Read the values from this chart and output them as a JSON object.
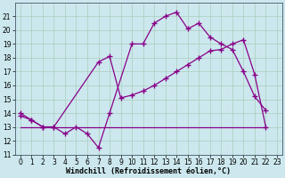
{
  "xlabel": "Windchill (Refroidissement éolien,°C)",
  "bg_color": "#cce8ee",
  "grid_color": "#aaccbb",
  "line_color": "#880088",
  "xlim": [
    -0.5,
    23.5
  ],
  "ylim": [
    11,
    22
  ],
  "yticks": [
    11,
    12,
    13,
    14,
    15,
    16,
    17,
    18,
    19,
    20,
    21
  ],
  "xticks": [
    0,
    1,
    2,
    3,
    4,
    5,
    6,
    7,
    8,
    9,
    10,
    11,
    12,
    13,
    14,
    15,
    16,
    17,
    18,
    19,
    20,
    21,
    22,
    23
  ],
  "line1_x": [
    0,
    1,
    2,
    3,
    4,
    5,
    6,
    7,
    8,
    10,
    11,
    12,
    13,
    14,
    15,
    16,
    17,
    18,
    19,
    20,
    21,
    22
  ],
  "line1_y": [
    14,
    13.5,
    13,
    13,
    12.5,
    13,
    12.5,
    11.5,
    14,
    19,
    19,
    20.5,
    21.0,
    21.3,
    20.1,
    20.5,
    19.5,
    19.0,
    18.6,
    17.0,
    15.2,
    14.2
  ],
  "line2_x": [
    0,
    1,
    2,
    3,
    7,
    8,
    9,
    10,
    11,
    12,
    13,
    14,
    15,
    16,
    17,
    18,
    19,
    20,
    21,
    22
  ],
  "line2_y": [
    13.8,
    13.5,
    13.0,
    13.0,
    17.7,
    18.1,
    15.1,
    15.3,
    15.6,
    16.0,
    16.5,
    17.0,
    17.5,
    18.0,
    18.5,
    18.6,
    19.0,
    19.3,
    16.8,
    13.0
  ],
  "line3_x": [
    0,
    22
  ],
  "line3_y": [
    13,
    13
  ]
}
